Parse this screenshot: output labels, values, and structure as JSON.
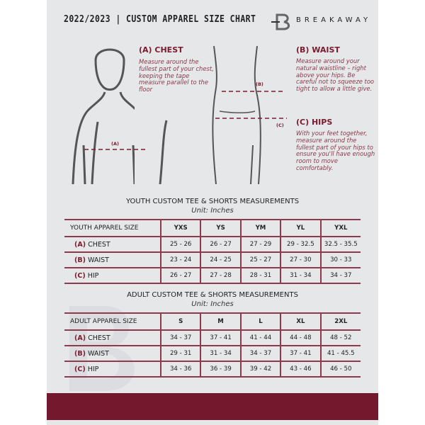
{
  "header": {
    "title": "2022/2023  |  CUSTOM APPAREL SIZE CHART",
    "brand": "BREAKAWAY"
  },
  "guide": {
    "chest": {
      "heading": "(A) CHEST",
      "text": "Measure around the fullest part of your chest, keeping the tape measure parallel to the floor",
      "marker": "(A)"
    },
    "waist": {
      "heading": "(B) WAIST",
      "text": "Measure around your natural waistline – right above your hips. Be careful not to squeeze too tight to allow a little give.",
      "marker": "(B)"
    },
    "hips": {
      "heading": "(C) HIPS",
      "text": "With your feet together, measure around the fullest part of your hips to ensure you'll have enough room to move comfortably.",
      "marker": "(C)"
    }
  },
  "youth": {
    "title": "YOUTH CUSTOM TEE & SHORTS MEASUREMENTS",
    "unit": "Unit: Inches",
    "header": "YOUTH APPAREL SIZE",
    "sizes": [
      "YXS",
      "YS",
      "YM",
      "YL",
      "YXL"
    ],
    "rows": [
      {
        "key": "(A)",
        "label": "CHEST",
        "values": [
          "25 - 26",
          "26 - 27",
          "27 - 29",
          "29 - 32.5",
          "32.5 - 35.5"
        ]
      },
      {
        "key": "(B)",
        "label": "WAIST",
        "values": [
          "23 - 24",
          "24 - 25",
          "25 - 27",
          "27 - 30",
          "30 - 33"
        ]
      },
      {
        "key": "(C)",
        "label": "HIP",
        "values": [
          "26 - 27",
          "27 - 28",
          "28 - 31",
          "31 - 34",
          "34 - 37"
        ]
      }
    ]
  },
  "adult": {
    "title": "ADULT CUSTOM TEE & SHORTS MEASUREMENTS",
    "unit": "Unit: Inches",
    "header": "ADULT APPAREL SIZE",
    "sizes": [
      "S",
      "M",
      "L",
      "XL",
      "2XL"
    ],
    "rows": [
      {
        "key": "(A)",
        "label": "CHEST",
        "values": [
          "34 - 37",
          "37 - 41",
          "41 - 44",
          "44 - 48",
          "48 - 52"
        ]
      },
      {
        "key": "(B)",
        "label": "WAIST",
        "values": [
          "29 - 31",
          "31 - 34",
          "34 - 37",
          "37 - 41",
          "41 - 45.5"
        ]
      },
      {
        "key": "(C)",
        "label": "HIP",
        "values": [
          "34 - 36",
          "36 - 39",
          "39 - 42",
          "43 - 46",
          "46 - 50"
        ]
      }
    ]
  },
  "colors": {
    "accent": "#74192d",
    "panel": "#e6e7e9"
  }
}
